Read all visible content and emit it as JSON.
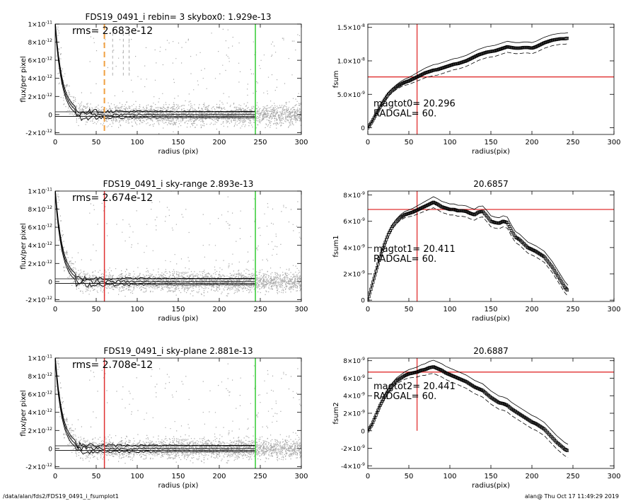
{
  "footer": {
    "path": "/data/alan/fds2/FDS19_0491_i_fsumplot1",
    "stamp": "alan@  Thu Oct 17 11:49:29 2019"
  },
  "colors": {
    "scatter": "#a8a8a8",
    "profile": "#000000",
    "radius_marker": "#e03030",
    "outer_marker": "#33cc33",
    "orange_marker": "#f0a040"
  },
  "chart_data": [
    {
      "type": "scatter",
      "title": "FDS19_0491_i rebin= 3    skybox0:  1.929e-13",
      "xlabel": "radius (pix)",
      "ylabel": "flux/per pixel",
      "xlim": [
        0,
        300
      ],
      "ylim": [
        -2.2e-12,
        1e-11
      ],
      "xticks": [
        0,
        50,
        100,
        150,
        200,
        250,
        300
      ],
      "yticks": [
        {
          "v": -2e-12,
          "mant": "-2×10",
          "exp": "-12"
        },
        {
          "v": 0,
          "mant": "0",
          "exp": ""
        },
        {
          "v": 2e-12,
          "mant": "2×10",
          "exp": "-12"
        },
        {
          "v": 4e-12,
          "mant": "4×10",
          "exp": "-12"
        },
        {
          "v": 6e-12,
          "mant": "6×10",
          "exp": "-12"
        },
        {
          "v": 8e-12,
          "mant": "8×10",
          "exp": "-12"
        },
        {
          "v": 1e-11,
          "mant": "1×10",
          "exp": "-11"
        }
      ],
      "annotation": "rms= 2.683e-12",
      "vlines": [
        {
          "x": 60,
          "color": "orange",
          "dashed": true
        },
        {
          "x": 244,
          "color": "green",
          "dashed": false
        }
      ],
      "extra_dashes": [
        70,
        83,
        90
      ],
      "scatter_cut": 244
    },
    {
      "type": "line",
      "title": "",
      "xlabel": "radius(pix)",
      "ylabel": "fsum",
      "xlim": [
        0,
        300
      ],
      "ylim": [
        -1e-09,
        1.55e-08
      ],
      "xticks": [
        0,
        50,
        100,
        150,
        200,
        250,
        300
      ],
      "yticks": [
        {
          "v": 0,
          "mant": "0",
          "exp": ""
        },
        {
          "v": 5e-09,
          "mant": "5.0×10",
          "exp": "-9"
        },
        {
          "v": 1e-08,
          "mant": "1.0×10",
          "exp": "-8"
        },
        {
          "v": 1.5e-08,
          "mant": "1.5×10",
          "exp": "-8"
        }
      ],
      "annotations": [
        "magtot0=  20.296",
        "RADGAL=     60."
      ],
      "crosshair": {
        "x": 60,
        "y": 7.6e-09
      },
      "curve": {
        "x": [
          0,
          5,
          10,
          15,
          20,
          25,
          30,
          35,
          40,
          45,
          50,
          55,
          60,
          65,
          70,
          75,
          80,
          85,
          90,
          95,
          100,
          105,
          110,
          115,
          120,
          125,
          130,
          135,
          140,
          145,
          150,
          155,
          160,
          165,
          170,
          175,
          180,
          185,
          190,
          195,
          200,
          205,
          210,
          215,
          220,
          225,
          230,
          235,
          240,
          244
        ],
        "y": [
          0,
          9e-10,
          2e-09,
          3.1e-09,
          4.1e-09,
          5e-09,
          5.6e-09,
          6.1e-09,
          6.5e-09,
          6.8e-09,
          7e-09,
          7.3e-09,
          7.6e-09,
          7.9e-09,
          8.2e-09,
          8.4e-09,
          8.6e-09,
          8.7e-09,
          8.9e-09,
          9.1e-09,
          9.3e-09,
          9.5e-09,
          9.6e-09,
          9.8e-09,
          1e-08,
          1.03e-08,
          1.06e-08,
          1.09e-08,
          1.11e-08,
          1.13e-08,
          1.14e-08,
          1.15e-08,
          1.17e-08,
          1.19e-08,
          1.21e-08,
          1.2e-08,
          1.19e-08,
          1.19e-08,
          1.2e-08,
          1.2e-08,
          1.19e-08,
          1.21e-08,
          1.24e-08,
          1.27e-08,
          1.29e-08,
          1.31e-08,
          1.32e-08,
          1.33e-08,
          1.33e-08,
          1.34e-08
        ]
      },
      "envelope": 0.05
    },
    {
      "type": "scatter",
      "title": "FDS19_0491_i sky-range  2.893e-13",
      "xlabel": "radius (pix)",
      "ylabel": "flux/per pixel",
      "xlim": [
        0,
        300
      ],
      "ylim": [
        -2.2e-12,
        1e-11
      ],
      "xticks": [
        0,
        50,
        100,
        150,
        200,
        250,
        300
      ],
      "yticks": [
        {
          "v": -2e-12,
          "mant": "-2×10",
          "exp": "-12"
        },
        {
          "v": 0,
          "mant": "0",
          "exp": ""
        },
        {
          "v": 2e-12,
          "mant": "2×10",
          "exp": "-12"
        },
        {
          "v": 4e-12,
          "mant": "4×10",
          "exp": "-12"
        },
        {
          "v": 6e-12,
          "mant": "6×10",
          "exp": "-12"
        },
        {
          "v": 8e-12,
          "mant": "8×10",
          "exp": "-12"
        },
        {
          "v": 1e-11,
          "mant": "1×10",
          "exp": "-11"
        }
      ],
      "annotation": "rms= 2.674e-12",
      "vlines": [
        {
          "x": 60,
          "color": "red",
          "dashed": false
        },
        {
          "x": 244,
          "color": "green",
          "dashed": false
        }
      ],
      "extra_dashes": [],
      "scatter_cut": 244
    },
    {
      "type": "line",
      "title": "20.6857",
      "xlabel": "radius(pix)",
      "ylabel": "fsum1",
      "xlim": [
        0,
        300
      ],
      "ylim": [
        -1e-10,
        8.3e-09
      ],
      "xticks": [
        0,
        50,
        100,
        150,
        200,
        250,
        300
      ],
      "yticks": [
        {
          "v": 0,
          "mant": "0",
          "exp": ""
        },
        {
          "v": 2e-09,
          "mant": "2×10",
          "exp": "-9"
        },
        {
          "v": 4e-09,
          "mant": "4×10",
          "exp": "-9"
        },
        {
          "v": 6e-09,
          "mant": "6×10",
          "exp": "-9"
        },
        {
          "v": 8e-09,
          "mant": "8×10",
          "exp": "-9"
        }
      ],
      "annotations": [
        "magtot1=  20.411",
        "RADGAL=     60."
      ],
      "crosshair": {
        "x": 60,
        "y": 6.9e-09
      },
      "curve": {
        "x": [
          0,
          5,
          10,
          15,
          20,
          25,
          30,
          35,
          40,
          45,
          50,
          55,
          60,
          65,
          70,
          75,
          80,
          85,
          90,
          95,
          100,
          105,
          110,
          115,
          120,
          125,
          130,
          135,
          140,
          145,
          150,
          155,
          160,
          165,
          170,
          175,
          180,
          185,
          190,
          195,
          200,
          205,
          210,
          215,
          220,
          225,
          230,
          235,
          240,
          244
        ],
        "y": [
          0,
          1.1e-09,
          2.2e-09,
          3.3e-09,
          4.2e-09,
          5e-09,
          5.6e-09,
          6e-09,
          6.3e-09,
          6.5e-09,
          6.6e-09,
          6.7e-09,
          6.85e-09,
          7e-09,
          7.15e-09,
          7.3e-09,
          7.45e-09,
          7.3e-09,
          7.1e-09,
          7e-09,
          6.9e-09,
          6.9e-09,
          6.8e-09,
          6.8e-09,
          6.75e-09,
          6.6e-09,
          6.5e-09,
          6.7e-09,
          6.75e-09,
          6.4e-09,
          6e-09,
          5.9e-09,
          5.85e-09,
          6e-09,
          5.9e-09,
          5.3e-09,
          4.8e-09,
          4.6e-09,
          4.3e-09,
          4e-09,
          3.85e-09,
          3.7e-09,
          3.5e-09,
          3.3e-09,
          2.9e-09,
          2.5e-09,
          2e-09,
          1.5e-09,
          1e-09,
          7e-10
        ]
      },
      "envelope": 0.05
    },
    {
      "type": "scatter",
      "title": "FDS19_0491_i sky-plane  2.881e-13",
      "xlabel": "radius (pix)",
      "ylabel": "flux/per pixel",
      "xlim": [
        0,
        300
      ],
      "ylim": [
        -2.2e-12,
        1e-11
      ],
      "xticks": [
        0,
        50,
        100,
        150,
        200,
        250,
        300
      ],
      "yticks": [
        {
          "v": -2e-12,
          "mant": "-2×10",
          "exp": "-12"
        },
        {
          "v": 0,
          "mant": "0",
          "exp": ""
        },
        {
          "v": 2e-12,
          "mant": "2×10",
          "exp": "-12"
        },
        {
          "v": 4e-12,
          "mant": "4×10",
          "exp": "-12"
        },
        {
          "v": 6e-12,
          "mant": "6×10",
          "exp": "-12"
        },
        {
          "v": 8e-12,
          "mant": "8×10",
          "exp": "-12"
        },
        {
          "v": 1e-11,
          "mant": "1×10",
          "exp": "-11"
        }
      ],
      "annotation": "rms= 2.708e-12",
      "vlines": [
        {
          "x": 60,
          "color": "red",
          "dashed": false
        },
        {
          "x": 244,
          "color": "green",
          "dashed": false
        }
      ],
      "extra_dashes": [],
      "scatter_cut": 244
    },
    {
      "type": "line",
      "title": "20.6887",
      "xlabel": "radius(pix)",
      "ylabel": "fsum2",
      "xlim": [
        0,
        300
      ],
      "ylim": [
        -4.3e-09,
        8.3e-09
      ],
      "xticks": [
        0,
        50,
        100,
        150,
        200,
        250,
        300
      ],
      "yticks": [
        {
          "v": -4e-09,
          "mant": "-4×10",
          "exp": "-9"
        },
        {
          "v": -2e-09,
          "mant": "-2×10",
          "exp": "-9"
        },
        {
          "v": 0,
          "mant": "0",
          "exp": ""
        },
        {
          "v": 2e-09,
          "mant": "2×10",
          "exp": "-9"
        },
        {
          "v": 4e-09,
          "mant": "4×10",
          "exp": "-9"
        },
        {
          "v": 6e-09,
          "mant": "6×10",
          "exp": "-9"
        },
        {
          "v": 8e-09,
          "mant": "8×10",
          "exp": "-9"
        }
      ],
      "annotations": [
        "magtot2=  20.441",
        "RADGAL=     60."
      ],
      "crosshair": {
        "x": 60,
        "y": 6.7e-09,
        "ybottom": 0
      },
      "curve": {
        "x": [
          0,
          5,
          10,
          15,
          20,
          25,
          30,
          35,
          40,
          45,
          50,
          55,
          60,
          65,
          70,
          75,
          80,
          85,
          90,
          95,
          100,
          105,
          110,
          115,
          120,
          125,
          130,
          135,
          140,
          145,
          150,
          155,
          160,
          165,
          170,
          175,
          180,
          185,
          190,
          195,
          200,
          205,
          210,
          215,
          220,
          225,
          230,
          235,
          240,
          244
        ],
        "y": [
          0,
          7e-10,
          1.8e-09,
          2.9e-09,
          3.8e-09,
          4.6e-09,
          5.2e-09,
          5.7e-09,
          6e-09,
          6.3e-09,
          6.5e-09,
          6.6e-09,
          6.7e-09,
          6.9e-09,
          7e-09,
          7.2e-09,
          7.3e-09,
          7.1e-09,
          6.9e-09,
          6.6e-09,
          6.4e-09,
          6.2e-09,
          6e-09,
          5.8e-09,
          5.6e-09,
          5.3e-09,
          5e-09,
          4.8e-09,
          4.6e-09,
          4.2e-09,
          3.8e-09,
          3.5e-09,
          3.2e-09,
          3.1e-09,
          2.9e-09,
          2.5e-09,
          2.2e-09,
          1.9e-09,
          1.6e-09,
          1.3e-09,
          1e-09,
          8e-10,
          5e-10,
          2e-10,
          -3e-10,
          -8e-10,
          -1.3e-09,
          -1.7e-09,
          -2.1e-09,
          -2.3e-09
        ]
      },
      "envelope": 0.06
    }
  ]
}
